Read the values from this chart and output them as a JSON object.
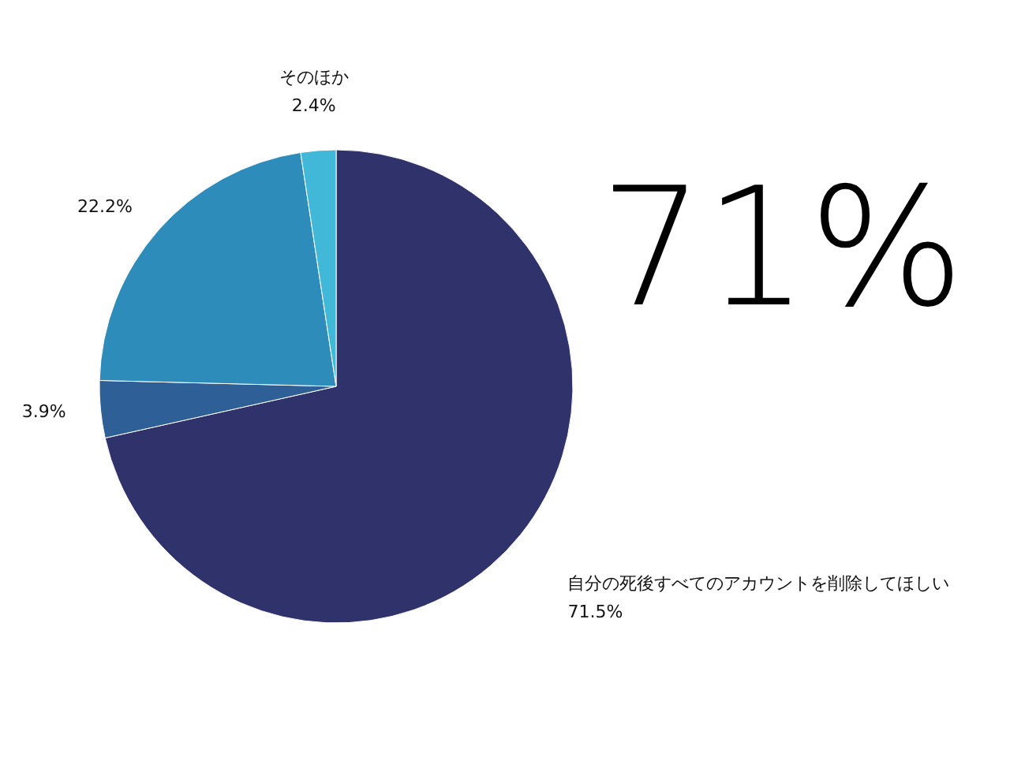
{
  "chart_data": {
    "type": "pie",
    "categories": [
      "自分の死後すべてのアカウントを削除してほしい",
      null,
      null,
      "そのほか"
    ],
    "values": [
      71.5,
      3.9,
      22.2,
      2.4
    ],
    "colors": [
      "#30336b",
      "#2e5f96",
      "#2e8cba",
      "#42b8d8"
    ],
    "value_labels": [
      "71.5%",
      "3.9%",
      "22.2%",
      "2.4%"
    ],
    "annotations": [
      "71%"
    ]
  }
}
